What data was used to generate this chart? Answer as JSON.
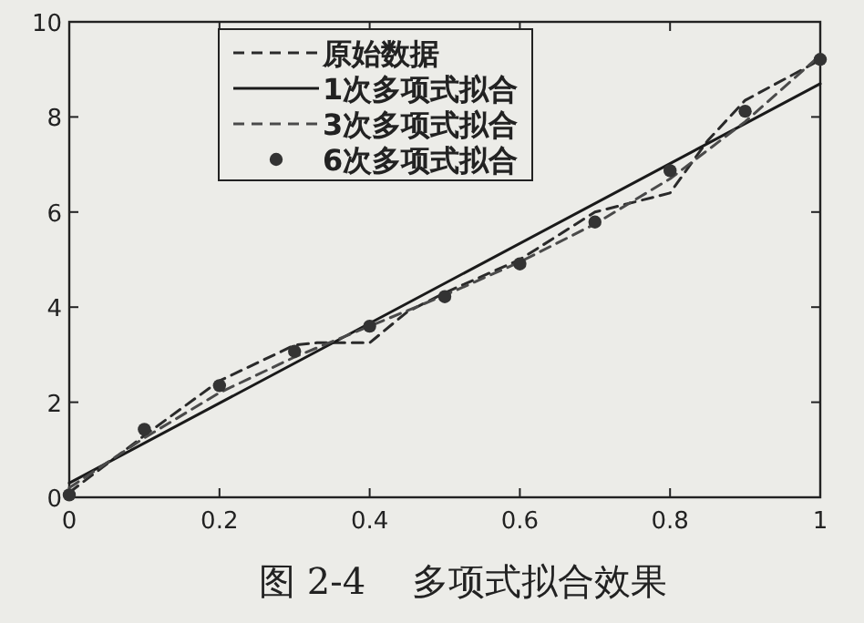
{
  "chart_data": {
    "type": "line",
    "annotations": [
      "图 2-4    多项式拟合效果"
    ],
    "xlim": [
      0,
      1
    ],
    "ylim": [
      0,
      10
    ],
    "xticks": [
      0,
      0.2,
      0.4,
      0.6,
      0.8,
      1
    ],
    "yticks": [
      0,
      2,
      4,
      6,
      8,
      10
    ],
    "legend": "top left",
    "grid": false,
    "series": [
      {
        "name": "原始数据",
        "color": "#2a2a2a",
        "line_style": "dashed",
        "x": [
          0,
          0.1,
          0.2,
          0.3,
          0.33,
          0.4,
          0.45,
          0.5,
          0.6,
          0.7,
          0.8,
          0.85,
          0.9,
          1
        ],
        "values": [
          0.1,
          1.3,
          2.45,
          3.2,
          3.25,
          3.25,
          3.9,
          4.3,
          5.0,
          6.0,
          6.4,
          7.5,
          8.35,
          9.2
        ]
      },
      {
        "name": "1次多项式拟合",
        "color": "#1a1a1a",
        "line_style": "solid",
        "x": [
          0,
          1
        ],
        "values": [
          0.3,
          8.7
        ]
      },
      {
        "name": "3次多项式拟合",
        "color": "#4a4a4a",
        "line_style": "dashed",
        "x": [
          0,
          0.1,
          0.2,
          0.3,
          0.4,
          0.5,
          0.6,
          0.7,
          0.8,
          0.9,
          1
        ],
        "values": [
          0.2,
          1.25,
          2.2,
          2.95,
          3.6,
          4.25,
          4.95,
          5.75,
          6.7,
          7.9,
          9.3
        ]
      },
      {
        "name": "6次多项式拟合",
        "type": "scatter",
        "color": "#333333",
        "marker": "circle",
        "x": [
          0,
          0.1,
          0.2,
          0.3,
          0.4,
          0.5,
          0.6,
          0.7,
          0.8,
          0.9,
          1
        ],
        "values": [
          0.05,
          1.43,
          2.35,
          3.07,
          3.6,
          4.22,
          4.91,
          5.79,
          6.87,
          8.12,
          9.21
        ]
      }
    ]
  }
}
